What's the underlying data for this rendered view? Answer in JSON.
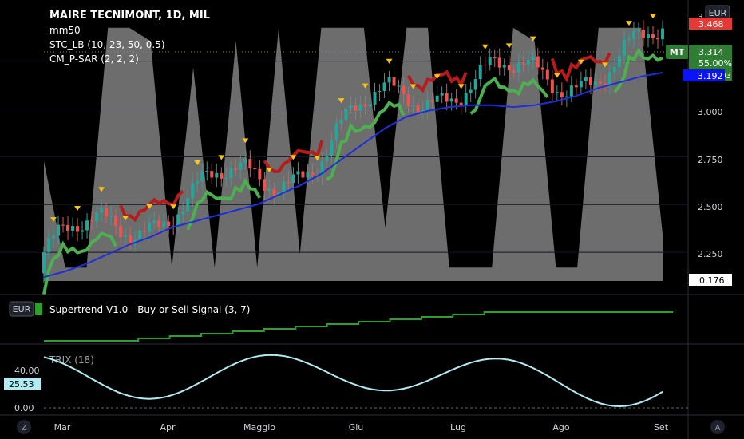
{
  "header": {
    "title": "MAIRE TECNIMONT, 1D, MIL",
    "indicators": [
      "mm50",
      "STC_LB (10, 23, 50, 0.5)",
      "CM_P-SAR (2, 2, 2)"
    ]
  },
  "currency": "EUR",
  "price_axis": {
    "ticks": [
      "3.250",
      "3.000",
      "2.750",
      "2.500",
      "2.250"
    ],
    "tag_top": "3.468",
    "tag_last": "3.314",
    "tag_ticker": "MT",
    "tag_pct": "55.00%",
    "tag_pct_tail": "03",
    "tag_ma": "3.192",
    "tag_stc": "0.176"
  },
  "supertrend": {
    "badge": "EUR",
    "label": "Supertrend V1.0 - Buy or Sell Signal (3, 7)"
  },
  "trix": {
    "label": "TRIX (18)",
    "ticks": [
      "40.00",
      "0.00"
    ],
    "tag": "25.53"
  },
  "time_axis": {
    "labels": [
      "Mar",
      "Apr",
      "Maggio",
      "Giu",
      "Lug",
      "Ago",
      "Set"
    ],
    "left_button": "Z",
    "right_button": "A"
  },
  "colors": {
    "up": "#26a69a",
    "down": "#ef5350",
    "sar_up": "#4caf50",
    "sar_down": "#b71c1c",
    "ma": "#1e2fd8",
    "stc": "#808080",
    "trix": "#b2ebf2",
    "marker": "#f5c518"
  },
  "chart_data": {
    "type": "candlestick",
    "title": "MAIRE TECNIMONT, 1D, MIL",
    "y_range": [
      2.1,
      3.52
    ],
    "y_ticks": [
      2.25,
      2.5,
      2.75,
      3.0,
      3.25
    ],
    "x_labels": [
      "Mar",
      "Apr",
      "Maggio",
      "Giu",
      "Lug",
      "Ago",
      "Set"
    ],
    "series": [
      {
        "name": "mm50",
        "values": [
          2.12,
          2.15,
          2.19,
          2.24,
          2.29,
          2.33,
          2.38,
          2.41,
          2.44,
          2.47,
          2.5,
          2.55,
          2.6,
          2.66,
          2.74,
          2.82,
          2.9,
          2.96,
          2.99,
          3.01,
          3.02,
          3.02,
          3.01,
          3.02,
          3.04,
          3.07,
          3.11,
          3.14,
          3.17,
          3.19
        ]
      },
      {
        "name": "STC_LB",
        "values": [
          0.45,
          0.05,
          0.05,
          0.95,
          0.95,
          0.9,
          0.05,
          0.8,
          0.05,
          0.9,
          0.05,
          0.95,
          0.1,
          0.95,
          0.95,
          0.95,
          0.2,
          0.95,
          0.95,
          0.05,
          0.05,
          0.05,
          0.95,
          0.9,
          0.05,
          0.05,
          0.95,
          0.95,
          0.95,
          0.176
        ]
      }
    ],
    "supertrend_signal": "buy",
    "trix": {
      "name": "TRIX (18)",
      "last": 25.53,
      "y_ticks": [
        0,
        40
      ]
    }
  }
}
